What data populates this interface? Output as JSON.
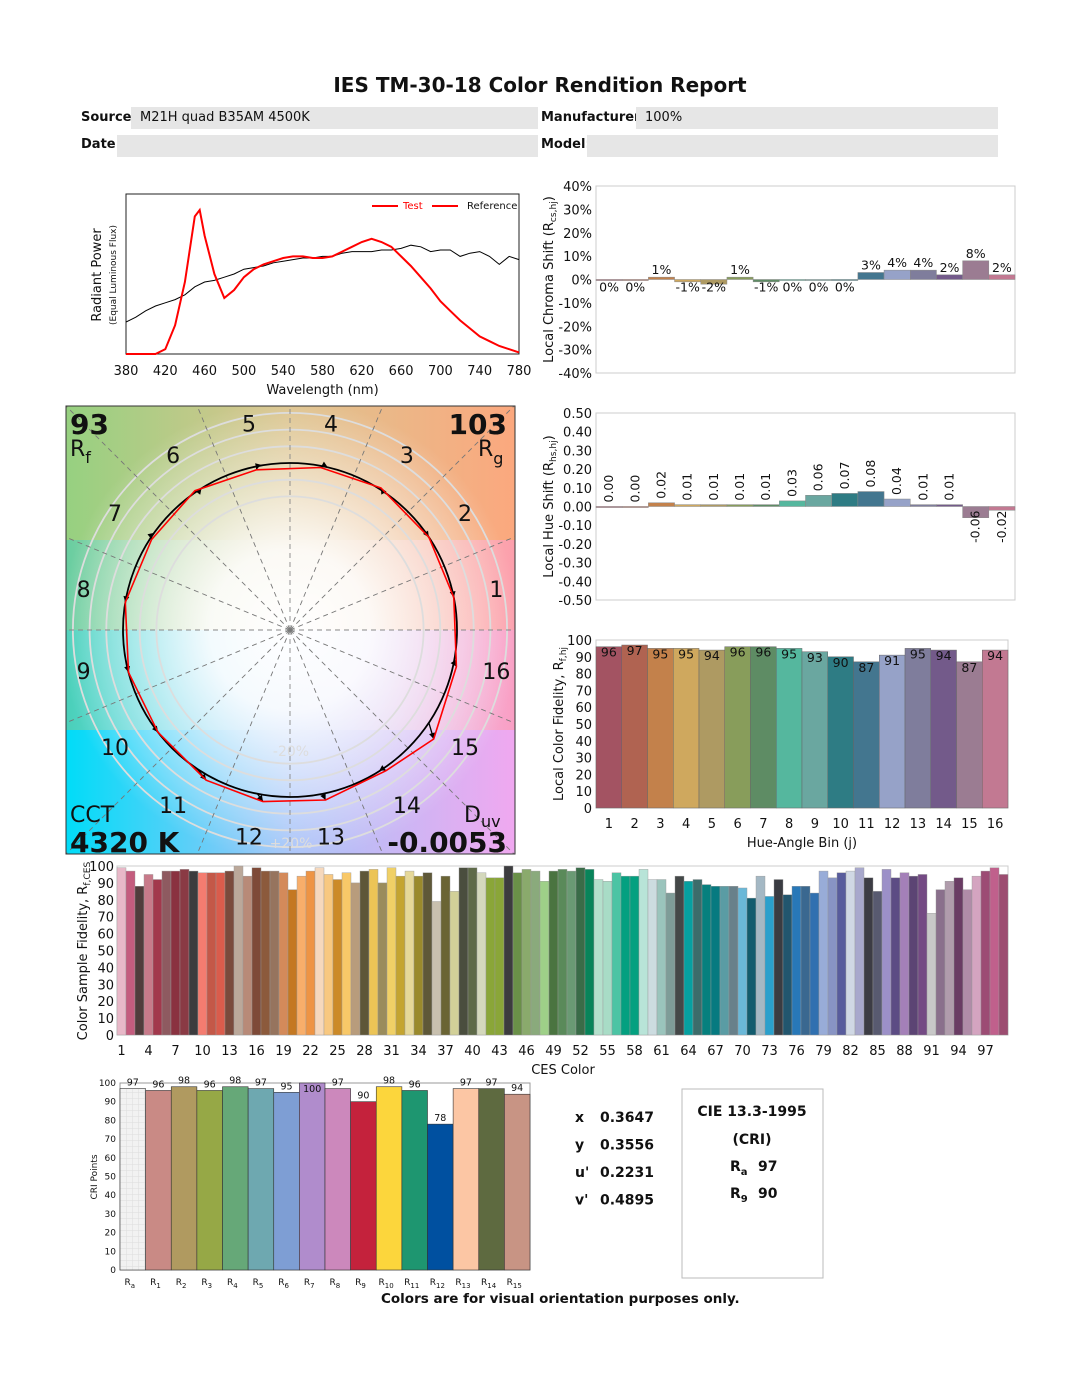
{
  "title": "IES TM-30-18 Color Rendition Report",
  "header": {
    "source_label": "Source:",
    "source_value": "M21H quad B35AM 4500K",
    "manufacturer_label": "Manufacturer:",
    "manufacturer_value": "100%",
    "date_label": "Date:",
    "date_value": "",
    "model_label": "Model:",
    "model_value": ""
  },
  "colors": {
    "test": "#ff0000",
    "reference": "#000000",
    "field_bg": "#e6e6e6"
  },
  "summary": {
    "rf": "93",
    "rf_label": "R",
    "rf_sub": "f",
    "rg": "103",
    "rg_label": "R",
    "rg_sub": "g",
    "cct_label": "CCT",
    "cct": "4320 K",
    "duv_label": "D",
    "duv_sub": "uv",
    "duv": "-0.0053",
    "ring_minus": "-20%",
    "ring_plus": "+20%"
  },
  "chromaticity": [
    {
      "label": "x",
      "value": "0.3647"
    },
    {
      "label": "y",
      "value": "0.3556"
    },
    {
      "label": "u'",
      "value": "0.2231"
    },
    {
      "label": "v'",
      "value": "0.4895"
    }
  ],
  "cie_box": {
    "title": "CIE 13.3-1995",
    "subtitle": "(CRI)",
    "ra_label": "R",
    "ra_sub": "a",
    "ra": "97",
    "r9_label": "R",
    "r9_sub": "9",
    "r9": "90"
  },
  "footnote": "Colors are for visual orientation purposes only.",
  "chart_data": [
    {
      "id": "spectrum",
      "type": "line",
      "xlabel": "Wavelength (nm)",
      "ylabel": "Radiant Power",
      "ylabel2": "(Equal Luminous Flux)",
      "xlim": [
        380,
        780
      ],
      "xticks": [
        380,
        420,
        460,
        500,
        540,
        580,
        620,
        660,
        700,
        740,
        780
      ],
      "legend": [
        "Test",
        "Reference"
      ],
      "legend_position": "top-right",
      "series": [
        {
          "name": "Test",
          "color": "#ff0000",
          "x": [
            380,
            390,
            400,
            410,
            420,
            430,
            440,
            450,
            455,
            460,
            470,
            480,
            490,
            500,
            510,
            520,
            530,
            540,
            550,
            560,
            570,
            580,
            590,
            600,
            610,
            620,
            630,
            640,
            650,
            660,
            670,
            680,
            690,
            700,
            710,
            720,
            730,
            740,
            750,
            760,
            770,
            780
          ],
          "y": [
            0,
            0,
            0,
            0,
            0.03,
            0.18,
            0.45,
            0.86,
            0.9,
            0.74,
            0.5,
            0.35,
            0.4,
            0.48,
            0.53,
            0.56,
            0.58,
            0.6,
            0.61,
            0.61,
            0.6,
            0.6,
            0.61,
            0.64,
            0.67,
            0.7,
            0.72,
            0.7,
            0.67,
            0.61,
            0.55,
            0.48,
            0.41,
            0.33,
            0.27,
            0.21,
            0.16,
            0.11,
            0.08,
            0.05,
            0.03,
            0.01
          ]
        },
        {
          "name": "Reference",
          "color": "#000000",
          "x": [
            380,
            390,
            400,
            410,
            420,
            430,
            440,
            450,
            460,
            470,
            480,
            490,
            500,
            510,
            520,
            530,
            540,
            550,
            560,
            570,
            580,
            590,
            600,
            610,
            620,
            630,
            640,
            650,
            660,
            670,
            680,
            690,
            700,
            710,
            720,
            730,
            740,
            750,
            760,
            770,
            780
          ],
          "y": [
            0.2,
            0.23,
            0.27,
            0.3,
            0.32,
            0.34,
            0.37,
            0.42,
            0.45,
            0.46,
            0.48,
            0.5,
            0.53,
            0.54,
            0.55,
            0.57,
            0.58,
            0.59,
            0.6,
            0.6,
            0.61,
            0.61,
            0.63,
            0.64,
            0.64,
            0.64,
            0.65,
            0.65,
            0.66,
            0.68,
            0.67,
            0.64,
            0.65,
            0.65,
            0.61,
            0.63,
            0.64,
            0.61,
            0.56,
            0.61,
            0.59
          ]
        }
      ]
    },
    {
      "id": "chroma_shift",
      "type": "bar",
      "ylabel": "Local Chroma Shift (R",
      "ylabel_sub": "cs,hj",
      "ylabel_end": ")",
      "ylim": [
        -40,
        40
      ],
      "yticks": [
        -40,
        -30,
        -20,
        -10,
        0,
        10,
        20,
        30,
        40
      ],
      "unit": "%",
      "categories": [
        1,
        2,
        3,
        4,
        5,
        6,
        7,
        8,
        9,
        10,
        11,
        12,
        13,
        14,
        15,
        16
      ],
      "values": [
        0,
        0,
        1,
        -1,
        -2,
        1,
        -1,
        0,
        0,
        0,
        3,
        4,
        4,
        2,
        8,
        2
      ]
    },
    {
      "id": "hue_shift",
      "type": "bar",
      "ylabel": "Local Hue Shift (R",
      "ylabel_sub": "hs,hj",
      "ylabel_end": ")",
      "ylim": [
        -0.5,
        0.5
      ],
      "yticks": [
        -0.5,
        -0.4,
        -0.3,
        -0.2,
        -0.1,
        0,
        0.1,
        0.2,
        0.3,
        0.4,
        0.5
      ],
      "categories": [
        1,
        2,
        3,
        4,
        5,
        6,
        7,
        8,
        9,
        10,
        11,
        12,
        13,
        14,
        15,
        16
      ],
      "values": [
        0.0,
        0.0,
        0.02,
        0.01,
        0.01,
        0.01,
        0.01,
        0.03,
        0.06,
        0.07,
        0.08,
        0.04,
        0.01,
        0.01,
        -0.06,
        -0.02
      ]
    },
    {
      "id": "local_fidelity",
      "type": "bar",
      "ylabel": "Local Color Fidelity, R",
      "ylabel_sub": "f,hj",
      "xlabel": "Hue-Angle Bin (j)",
      "ylim": [
        0,
        100
      ],
      "yticks": [
        0,
        10,
        20,
        30,
        40,
        50,
        60,
        70,
        80,
        90,
        100
      ],
      "categories": [
        1,
        2,
        3,
        4,
        5,
        6,
        7,
        8,
        9,
        10,
        11,
        12,
        13,
        14,
        15,
        16
      ],
      "values": [
        96,
        97,
        95,
        95,
        94,
        96,
        96,
        95,
        93,
        90,
        87,
        91,
        95,
        94,
        87,
        94
      ],
      "bin_colors": [
        "#a35362",
        "#b06351",
        "#c3814b",
        "#cfa85e",
        "#ae9a62",
        "#889d5b",
        "#5e8c64",
        "#55b79e",
        "#6aa7a0",
        "#2e7c84",
        "#43768f",
        "#96a2c8",
        "#7f7d9c",
        "#735a8a",
        "#9b7c92",
        "#c27992"
      ]
    },
    {
      "id": "vector_graphic",
      "type": "scatter",
      "bin_labels": [
        "1",
        "2",
        "3",
        "4",
        "5",
        "6",
        "7",
        "8",
        "9",
        "10",
        "11",
        "12",
        "13",
        "14",
        "15",
        "16"
      ],
      "note": ""
    },
    {
      "id": "ces_fidelity",
      "type": "bar",
      "ylabel": "Color Sample Fidelity, R",
      "ylabel_sub": "f,CES",
      "xlabel": "CES Color",
      "ylim": [
        0,
        100
      ],
      "yticks": [
        0,
        10,
        20,
        30,
        40,
        50,
        60,
        70,
        80,
        90,
        100
      ],
      "xticks": [
        1,
        4,
        7,
        10,
        13,
        16,
        19,
        22,
        25,
        28,
        31,
        34,
        37,
        40,
        43,
        46,
        49,
        52,
        55,
        58,
        61,
        64,
        67,
        70,
        73,
        76,
        79,
        82,
        85,
        88,
        91,
        94,
        97
      ],
      "values": [
        99,
        97,
        88,
        95,
        92,
        97,
        97,
        98,
        97,
        96,
        96,
        96,
        97,
        100,
        94,
        99,
        97,
        97,
        96,
        86,
        94,
        97,
        99,
        95,
        92,
        96,
        90,
        97,
        98,
        90,
        99,
        94,
        97,
        94,
        96,
        79,
        94,
        85,
        99,
        99,
        96,
        93,
        93,
        100,
        96,
        98,
        97,
        91,
        97,
        98,
        97,
        99,
        98,
        92,
        91,
        96,
        94,
        94,
        98,
        92,
        92,
        84,
        94,
        91,
        92,
        89,
        88,
        88,
        88,
        87,
        81,
        94,
        82,
        92,
        83,
        88,
        88,
        84,
        97,
        93,
        96,
        97,
        99,
        93,
        85,
        98,
        93,
        96,
        94,
        95,
        72,
        86,
        91,
        93,
        86,
        94,
        97,
        99,
        95
      ],
      "colors": [
        "#e8b8c8",
        "#c45c7e",
        "#513c3c",
        "#c87a8a",
        "#a2384c",
        "#8e5a60",
        "#8a3240",
        "#8a3a44",
        "#3c3c3e",
        "#f47c70",
        "#c45848",
        "#da5c4c",
        "#7a4a3c",
        "#bba89a",
        "#b88a78",
        "#7e4a38",
        "#8c5a3c",
        "#96745e",
        "#d48a5a",
        "#c47822",
        "#f8ae6a",
        "#ee9444",
        "#f6d8bc",
        "#f8c880",
        "#cc8a28",
        "#f8c868",
        "#b89c7c",
        "#5e5638",
        "#ecc456",
        "#9a8c5c",
        "#f0d066",
        "#c4a430",
        "#e6d898",
        "#9a8a2c",
        "#5e5838",
        "#c8c0ae",
        "#6a6434",
        "#d2d098",
        "#4a4e3e",
        "#5e6a48",
        "#d4d8bc",
        "#8aa638",
        "#8aa638",
        "#3c3c3e",
        "#6a9048",
        "#8aaa6c",
        "#8aaa7c",
        "#9ed088",
        "#4a7440",
        "#5a8a5a",
        "#6a9a74",
        "#3a6c48",
        "#08845a",
        "#b4e0cc",
        "#a8dcc6",
        "#4cc4a4",
        "#04a080",
        "#04a080",
        "#b8e4d8",
        "#ccdce0",
        "#9ac4bc",
        "#7e9c98",
        "#444848",
        "#06a0a0",
        "#3c6c6a",
        "#06807e",
        "#067a80",
        "#5a9ca4",
        "#68808a",
        "#6ab8d8",
        "#125c6e",
        "#a4b8c4",
        "#2aa0cc",
        "#3a3c42",
        "#22566e",
        "#2878b8",
        "#3a6890",
        "#3070b0",
        "#98acd8",
        "#8894c4",
        "#585c9c",
        "#d0d8e4",
        "#a8a8cc",
        "#3c3c44",
        "#585a70",
        "#9c90c8",
        "#5c4c84",
        "#a480b8",
        "#5c4474",
        "#744a84",
        "#c8c8c8",
        "#8a708c",
        "#b09cac",
        "#6a3c64",
        "#b08ca8",
        "#d4a4c0",
        "#9c4c74",
        "#c0608c",
        "#9c4c70"
      ]
    },
    {
      "id": "cri",
      "type": "bar",
      "ylabel": "CRI Points",
      "ylim": [
        0,
        100
      ],
      "yticks": [
        0,
        10,
        20,
        30,
        40,
        50,
        60,
        70,
        80,
        90,
        100
      ],
      "categories": [
        {
          "l": "R",
          "s": "a"
        },
        {
          "l": "R",
          "s": "1"
        },
        {
          "l": "R",
          "s": "2"
        },
        {
          "l": "R",
          "s": "3"
        },
        {
          "l": "R",
          "s": "4"
        },
        {
          "l": "R",
          "s": "5"
        },
        {
          "l": "R",
          "s": "6"
        },
        {
          "l": "R",
          "s": "7"
        },
        {
          "l": "R",
          "s": "8"
        },
        {
          "l": "R",
          "s": "9"
        },
        {
          "l": "R",
          "s": "10"
        },
        {
          "l": "R",
          "s": "11"
        },
        {
          "l": "R",
          "s": "12"
        },
        {
          "l": "R",
          "s": "13"
        },
        {
          "l": "R",
          "s": "14"
        },
        {
          "l": "R",
          "s": "15"
        }
      ],
      "values": [
        97,
        96,
        98,
        96,
        98,
        97,
        95,
        100,
        97,
        90,
        98,
        96,
        78,
        97,
        97,
        94
      ],
      "colors": [
        "#f0f0f0",
        "#c98a85",
        "#b09a60",
        "#96a846",
        "#66a878",
        "#6ea8b0",
        "#7e9ed4",
        "#b08ccc",
        "#cc88bc",
        "#c4223c",
        "#fcd63c",
        "#1e9670",
        "#0050a0",
        "#fcc6a4",
        "#5e6a40",
        "#c89484"
      ]
    }
  ]
}
